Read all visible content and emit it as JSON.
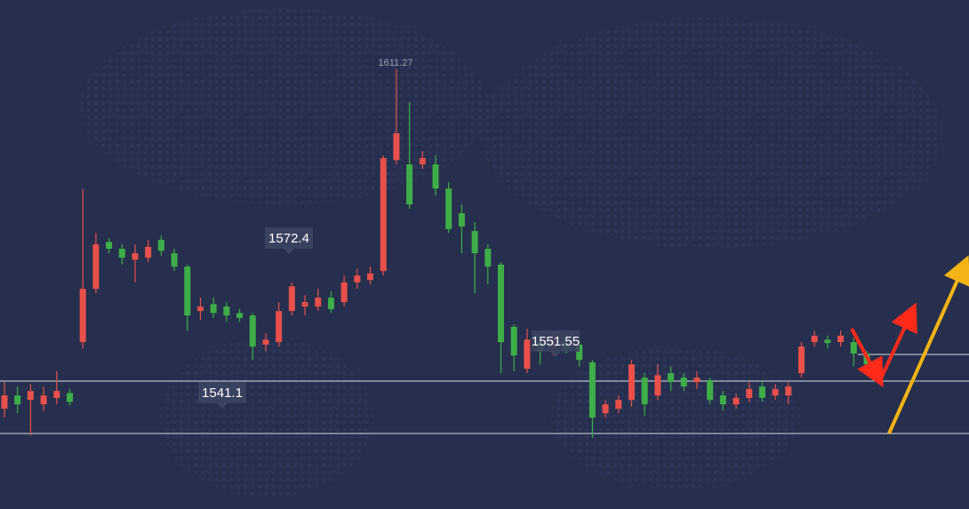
{
  "chart_data": {
    "type": "candlestick",
    "ylim": [
      1522.2,
      1625.3
    ],
    "up_color": "#e8504b",
    "down_color": "#3fae49",
    "open": [
      1542.5,
      1545.2,
      1544.3,
      1543.4,
      1544.7,
      1545.7,
      1556.0,
      1566.8,
      1576.3,
      1574.9,
      1572.7,
      1573.1,
      1576.7,
      1574.0,
      1571.3,
      1562.3,
      1563.7,
      1563.2,
      1561.9,
      1561.4,
      1555.5,
      1556.0,
      1562.3,
      1563.2,
      1563.2,
      1565.0,
      1564.1,
      1568.1,
      1568.6,
      1570.4,
      1592.9,
      1592.0,
      1592.0,
      1592.0,
      1587.1,
      1582.1,
      1578.5,
      1574.9,
      1571.7,
      1559.1,
      1550.6,
      1556.0,
      1555.1,
      1556.5,
      1555.5,
      1551.9,
      1541.6,
      1542.5,
      1544.3,
      1548.8,
      1545.2,
      1549.7,
      1548.8,
      1547.9,
      1548.3,
      1545.2,
      1543.4,
      1544.7,
      1547.0,
      1545.2,
      1545.2,
      1549.7,
      1556.0,
      1556.5,
      1556.0,
      1556.0,
      1553.7
    ],
    "high": [
      1547.9,
      1547.0,
      1547.5,
      1547.0,
      1550.1,
      1546.5,
      1587.0,
      1578.1,
      1577.1,
      1575.8,
      1575.8,
      1576.7,
      1577.6,
      1574.9,
      1571.7,
      1565.0,
      1565.0,
      1564.1,
      1562.7,
      1561.9,
      1557.8,
      1564.1,
      1568.1,
      1565.5,
      1566.8,
      1566.3,
      1569.5,
      1570.9,
      1571.3,
      1593.8,
      1611.27,
      1604.6,
      1594.7,
      1593.8,
      1588.4,
      1583.9,
      1580.3,
      1575.8,
      1572.2,
      1559.6,
      1558.7,
      1557.3,
      1557.8,
      1557.6,
      1556.9,
      1552.4,
      1544.3,
      1545.2,
      1552.4,
      1549.7,
      1551.5,
      1551.1,
      1549.7,
      1550.1,
      1548.8,
      1546.1,
      1545.6,
      1547.9,
      1548.3,
      1547.5,
      1547.9,
      1556.0,
      1558.3,
      1557.3,
      1558.3,
      1556.9,
      1554.2
    ],
    "low": [
      1540.7,
      1541.6,
      1537.1,
      1542.1,
      1543.4,
      1543.2,
      1554.7,
      1565.9,
      1574.0,
      1571.7,
      1568.1,
      1572.2,
      1573.5,
      1570.4,
      1558.3,
      1560.5,
      1560.9,
      1560.1,
      1560.1,
      1552.4,
      1554.2,
      1555.1,
      1561.4,
      1561.4,
      1562.3,
      1561.9,
      1563.2,
      1566.8,
      1567.7,
      1569.5,
      1592.0,
      1583.0,
      1591.1,
      1585.7,
      1578.1,
      1574.0,
      1565.9,
      1567.7,
      1549.7,
      1550.1,
      1549.7,
      1551.5,
      1553.3,
      1553.7,
      1551.1,
      1536.6,
      1540.7,
      1541.6,
      1542.9,
      1541.1,
      1544.3,
      1546.1,
      1546.1,
      1546.5,
      1543.4,
      1542.1,
      1542.5,
      1543.9,
      1543.9,
      1544.3,
      1543.4,
      1548.8,
      1555.1,
      1554.7,
      1555.1,
      1551.1,
      1550.6
    ],
    "close": [
      1545.2,
      1543.4,
      1546.1,
      1545.2,
      1546.1,
      1543.9,
      1566.8,
      1575.8,
      1574.9,
      1573.1,
      1574.0,
      1575.3,
      1574.5,
      1571.3,
      1561.4,
      1563.2,
      1561.9,
      1561.4,
      1560.9,
      1555.1,
      1556.5,
      1562.3,
      1567.3,
      1564.1,
      1565.0,
      1562.7,
      1568.1,
      1569.5,
      1569.9,
      1593.3,
      1598.3,
      1583.9,
      1593.3,
      1587.1,
      1578.9,
      1579.4,
      1574.0,
      1571.3,
      1556.0,
      1553.3,
      1556.5,
      1554.2,
      1556.9,
      1554.7,
      1552.4,
      1540.7,
      1543.4,
      1544.3,
      1551.5,
      1543.4,
      1549.3,
      1547.9,
      1547.0,
      1548.8,
      1544.3,
      1543.4,
      1544.7,
      1546.5,
      1544.7,
      1546.5,
      1547.0,
      1555.1,
      1557.3,
      1555.8,
      1557.3,
      1553.7,
      1551.5
    ],
    "annotations": [
      1611.27,
      1572.4,
      1541.1,
      1551.55
    ],
    "levels": [
      1548.1,
      1537.5,
      1553.5
    ],
    "level_color": "#d8dce6"
  }
}
